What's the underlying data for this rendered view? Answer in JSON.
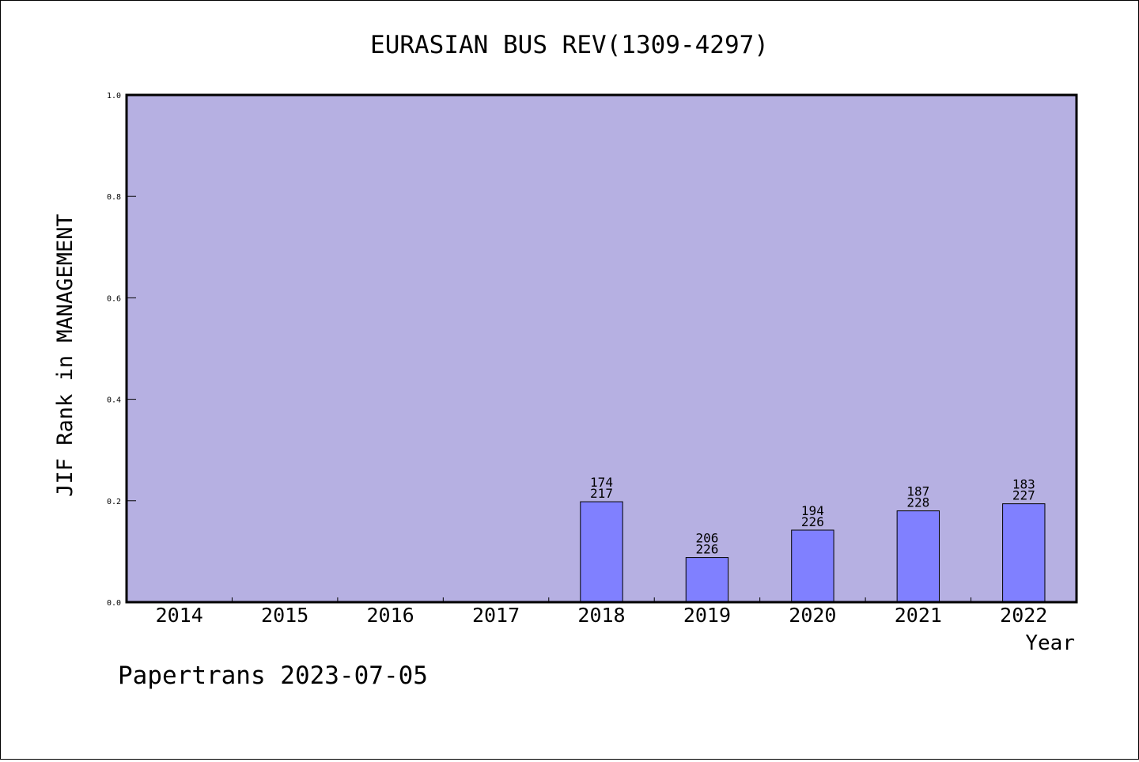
{
  "chart_data": {
    "type": "bar",
    "title": "EURASIAN BUS REV(1309-4297)",
    "xlabel": "Year",
    "ylabel": "JIF Rank in MANAGEMENT",
    "ylim": [
      0.0,
      1.0
    ],
    "yticks": [
      "0.0",
      "0.2",
      "0.4",
      "0.6",
      "0.8",
      "1.0"
    ],
    "categories": [
      "2014",
      "2015",
      "2016",
      "2017",
      "2018",
      "2019",
      "2020",
      "2021",
      "2022"
    ],
    "values": [
      null,
      null,
      null,
      null,
      0.198,
      0.088,
      0.142,
      0.18,
      0.194
    ],
    "rank_labels": [
      null,
      null,
      null,
      null,
      [
        "174",
        "217"
      ],
      [
        "206",
        "226"
      ],
      [
        "194",
        "226"
      ],
      [
        "187",
        "228"
      ],
      [
        "183",
        "227"
      ]
    ],
    "grid": false,
    "legend": "none",
    "colors": {
      "plot_background": "#b6b0e2",
      "bar_fill": "#8080ff",
      "bar_stroke": "#000000",
      "axis": "#000000"
    }
  },
  "footer": {
    "source": "Papertrans 2023-07-05"
  }
}
